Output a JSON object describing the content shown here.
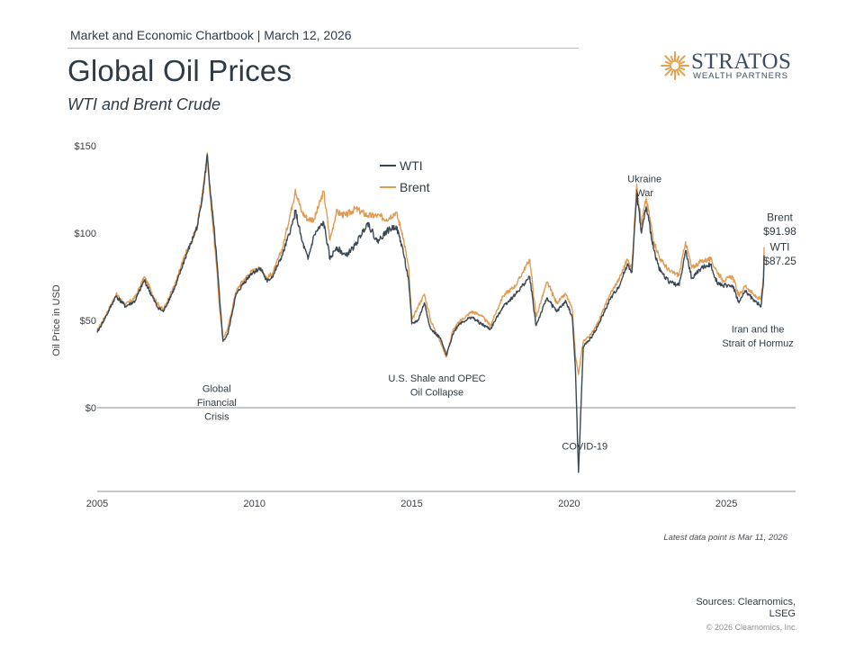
{
  "header": {
    "chartbook": "Market and Economic Chartbook | March 12, 2026",
    "title": "Global Oil Prices",
    "subtitle": "WTI and Brent Crude"
  },
  "logo": {
    "name": "STRATOS",
    "tagline": "WEALTH PARTNERS"
  },
  "footer": {
    "latest_note": "Latest data point is Mar 11, 2026",
    "sources_line1": "Sources: Clearnomics,",
    "sources_line2": "LSEG",
    "copyright": "© 2026 Clearnomics, Inc."
  },
  "colors": {
    "wti": "#3a4752",
    "brent": "#df9b52",
    "axis": "#8a8f94",
    "text": "#3a3f45"
  },
  "chart_data": {
    "type": "line",
    "title": "Global Oil Prices",
    "subtitle": "WTI and Brent Crude",
    "ylabel": "Oil Price in USD",
    "xlabel": "",
    "xlim": [
      2005.0,
      2027.2
    ],
    "ylim": [
      -48,
      152
    ],
    "y_ticks": [
      0,
      50,
      100,
      150
    ],
    "y_tick_labels": [
      "$0",
      "$50",
      "$100",
      "$150"
    ],
    "x_ticks": [
      2005,
      2010,
      2015,
      2020,
      2025
    ],
    "x_tick_labels": [
      "2005",
      "2010",
      "2015",
      "2020",
      "2025"
    ],
    "grid": false,
    "legend": {
      "position": "top-center",
      "entries": [
        "WTI",
        "Brent"
      ]
    },
    "series": [
      {
        "name": "WTI",
        "points": [
          [
            2005.0,
            43
          ],
          [
            2005.3,
            53
          ],
          [
            2005.6,
            64
          ],
          [
            2005.9,
            58
          ],
          [
            2006.2,
            61
          ],
          [
            2006.5,
            73
          ],
          [
            2006.9,
            58
          ],
          [
            2007.1,
            55
          ],
          [
            2007.5,
            70
          ],
          [
            2007.8,
            86
          ],
          [
            2008.0,
            95
          ],
          [
            2008.2,
            105
          ],
          [
            2008.4,
            128
          ],
          [
            2008.5,
            145
          ],
          [
            2008.6,
            122
          ],
          [
            2008.7,
            105
          ],
          [
            2008.8,
            85
          ],
          [
            2008.9,
            60
          ],
          [
            2009.0,
            38
          ],
          [
            2009.15,
            42
          ],
          [
            2009.4,
            64
          ],
          [
            2009.6,
            70
          ],
          [
            2009.9,
            77
          ],
          [
            2010.2,
            80
          ],
          [
            2010.4,
            72
          ],
          [
            2010.6,
            76
          ],
          [
            2010.9,
            88
          ],
          [
            2011.2,
            105
          ],
          [
            2011.3,
            113
          ],
          [
            2011.5,
            96
          ],
          [
            2011.7,
            85
          ],
          [
            2011.9,
            99
          ],
          [
            2012.2,
            106
          ],
          [
            2012.4,
            85
          ],
          [
            2012.6,
            92
          ],
          [
            2012.9,
            87
          ],
          [
            2013.2,
            93
          ],
          [
            2013.6,
            106
          ],
          [
            2013.9,
            95
          ],
          [
            2014.2,
            101
          ],
          [
            2014.5,
            104
          ],
          [
            2014.7,
            92
          ],
          [
            2014.9,
            73
          ],
          [
            2015.0,
            48
          ],
          [
            2015.2,
            50
          ],
          [
            2015.4,
            60
          ],
          [
            2015.6,
            45
          ],
          [
            2015.9,
            40
          ],
          [
            2016.1,
            30
          ],
          [
            2016.3,
            42
          ],
          [
            2016.5,
            48
          ],
          [
            2016.9,
            52
          ],
          [
            2017.2,
            48
          ],
          [
            2017.5,
            45
          ],
          [
            2017.9,
            58
          ],
          [
            2018.3,
            65
          ],
          [
            2018.75,
            75
          ],
          [
            2018.95,
            47
          ],
          [
            2019.3,
            63
          ],
          [
            2019.6,
            55
          ],
          [
            2019.9,
            61
          ],
          [
            2020.1,
            52
          ],
          [
            2020.2,
            23
          ],
          [
            2020.3,
            -37
          ],
          [
            2020.45,
            35
          ],
          [
            2020.7,
            40
          ],
          [
            2020.95,
            48
          ],
          [
            2021.3,
            62
          ],
          [
            2021.6,
            70
          ],
          [
            2021.85,
            82
          ],
          [
            2022.0,
            78
          ],
          [
            2022.15,
            123
          ],
          [
            2022.3,
            100
          ],
          [
            2022.45,
            115
          ],
          [
            2022.7,
            90
          ],
          [
            2022.9,
            78
          ],
          [
            2023.2,
            72
          ],
          [
            2023.5,
            70
          ],
          [
            2023.7,
            90
          ],
          [
            2023.9,
            74
          ],
          [
            2024.2,
            80
          ],
          [
            2024.5,
            82
          ],
          [
            2024.7,
            72
          ],
          [
            2024.9,
            70
          ],
          [
            2025.2,
            70
          ],
          [
            2025.4,
            60
          ],
          [
            2025.6,
            67
          ],
          [
            2025.9,
            61
          ],
          [
            2026.1,
            58
          ],
          [
            2026.18,
            72
          ],
          [
            2026.2,
            87.25
          ]
        ]
      },
      {
        "name": "Brent",
        "points": [
          [
            2005.0,
            44
          ],
          [
            2005.3,
            54
          ],
          [
            2005.6,
            65
          ],
          [
            2005.9,
            59
          ],
          [
            2006.2,
            63
          ],
          [
            2006.5,
            75
          ],
          [
            2006.9,
            60
          ],
          [
            2007.1,
            56
          ],
          [
            2007.5,
            72
          ],
          [
            2007.8,
            88
          ],
          [
            2008.0,
            95
          ],
          [
            2008.2,
            106
          ],
          [
            2008.4,
            130
          ],
          [
            2008.5,
            146
          ],
          [
            2008.6,
            120
          ],
          [
            2008.7,
            100
          ],
          [
            2008.8,
            80
          ],
          [
            2008.9,
            55
          ],
          [
            2009.0,
            40
          ],
          [
            2009.15,
            45
          ],
          [
            2009.4,
            66
          ],
          [
            2009.6,
            72
          ],
          [
            2009.9,
            78
          ],
          [
            2010.2,
            80
          ],
          [
            2010.4,
            74
          ],
          [
            2010.6,
            78
          ],
          [
            2010.9,
            92
          ],
          [
            2011.2,
            116
          ],
          [
            2011.3,
            125
          ],
          [
            2011.5,
            112
          ],
          [
            2011.7,
            108
          ],
          [
            2011.9,
            108
          ],
          [
            2012.2,
            124
          ],
          [
            2012.4,
            96
          ],
          [
            2012.6,
            112
          ],
          [
            2012.9,
            110
          ],
          [
            2013.2,
            114
          ],
          [
            2013.6,
            110
          ],
          [
            2013.9,
            110
          ],
          [
            2014.2,
            108
          ],
          [
            2014.5,
            112
          ],
          [
            2014.7,
            100
          ],
          [
            2014.9,
            80
          ],
          [
            2015.0,
            50
          ],
          [
            2015.2,
            58
          ],
          [
            2015.4,
            65
          ],
          [
            2015.6,
            50
          ],
          [
            2015.9,
            38
          ],
          [
            2016.1,
            29
          ],
          [
            2016.3,
            44
          ],
          [
            2016.5,
            49
          ],
          [
            2016.9,
            55
          ],
          [
            2017.2,
            53
          ],
          [
            2017.5,
            47
          ],
          [
            2017.9,
            64
          ],
          [
            2018.3,
            70
          ],
          [
            2018.75,
            85
          ],
          [
            2018.95,
            52
          ],
          [
            2019.3,
            72
          ],
          [
            2019.6,
            60
          ],
          [
            2019.9,
            65
          ],
          [
            2020.1,
            56
          ],
          [
            2020.2,
            30
          ],
          [
            2020.3,
            19
          ],
          [
            2020.45,
            38
          ],
          [
            2020.7,
            42
          ],
          [
            2020.95,
            50
          ],
          [
            2021.3,
            65
          ],
          [
            2021.6,
            74
          ],
          [
            2021.85,
            85
          ],
          [
            2022.0,
            80
          ],
          [
            2022.15,
            128
          ],
          [
            2022.3,
            105
          ],
          [
            2022.45,
            120
          ],
          [
            2022.7,
            95
          ],
          [
            2022.9,
            85
          ],
          [
            2023.2,
            78
          ],
          [
            2023.5,
            76
          ],
          [
            2023.7,
            95
          ],
          [
            2023.9,
            80
          ],
          [
            2024.2,
            84
          ],
          [
            2024.5,
            85
          ],
          [
            2024.7,
            78
          ],
          [
            2024.9,
            73
          ],
          [
            2025.2,
            75
          ],
          [
            2025.4,
            64
          ],
          [
            2025.6,
            70
          ],
          [
            2025.9,
            64
          ],
          [
            2026.1,
            62
          ],
          [
            2026.18,
            75
          ],
          [
            2026.2,
            91.98
          ]
        ]
      }
    ],
    "annotations": [
      {
        "id": "gfc",
        "lines": [
          "Global",
          "Financial",
          "Crisis"
        ],
        "x": 2008.8,
        "y": 9
      },
      {
        "id": "shale",
        "lines": [
          "U.S. Shale and OPEC",
          "Oil Collapse"
        ],
        "x": 2015.8,
        "y": 15
      },
      {
        "id": "covid",
        "lines": [
          "COVID-19"
        ],
        "x": 2020.5,
        "y": -24
      },
      {
        "id": "ukraine",
        "lines": [
          "Ukraine",
          "War"
        ],
        "x": 2022.4,
        "y": 129
      },
      {
        "id": "iran",
        "lines": [
          "Iran and the",
          "Strait of Hormuz"
        ],
        "x": 2026.0,
        "y": 43
      },
      {
        "id": "brent-last",
        "lines": [
          "Brent",
          "$91.98"
        ],
        "x": 2026.7,
        "y": 107
      },
      {
        "id": "wti-last",
        "lines": [
          "WTI",
          "$87.25"
        ],
        "x": 2026.7,
        "y": 90
      }
    ]
  }
}
